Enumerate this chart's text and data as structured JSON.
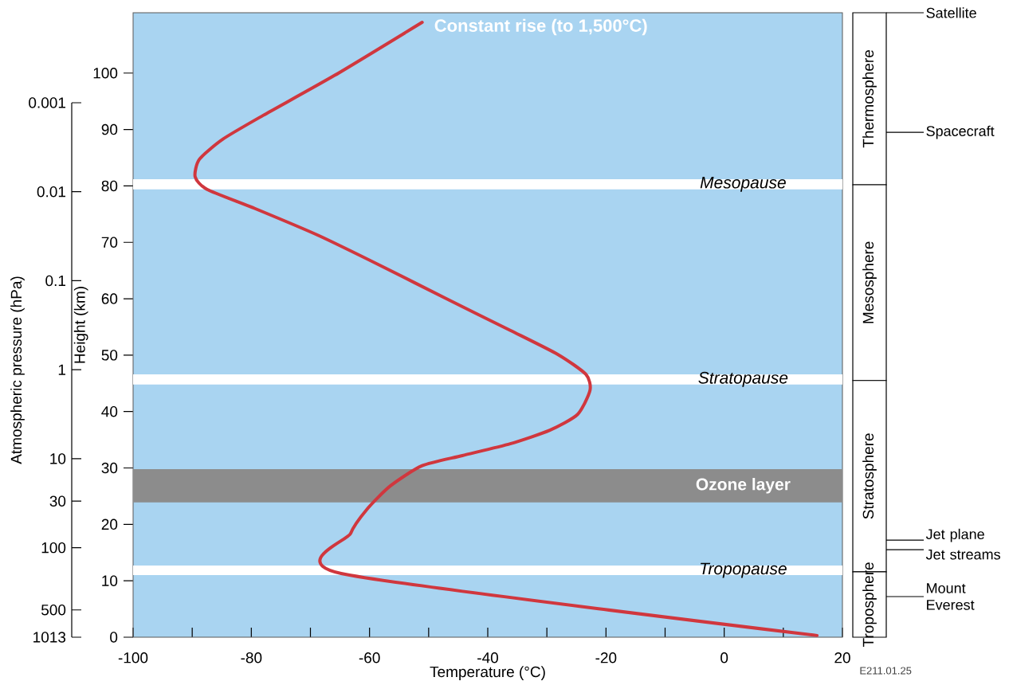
{
  "chart_data": [
    {
      "type": "line",
      "xlabel": "Temperature (°C)",
      "ylabel": "Height (km)",
      "y2label": "Atmospheric pressure (hPa)",
      "series": [
        {
          "color": "#d0373e",
          "x": [
            15.7,
            -64.8,
            -63.2,
            -60.5,
            -56.5,
            -51.1,
            -44.3,
            -36.2,
            -29.5,
            -24.8,
            -22.7,
            -23.4,
            -28.1,
            -36.2,
            -47.0,
            -57.8,
            -68.6,
            -79.4,
            -87.5,
            -89.5,
            -88.8,
            -84.8,
            -78.0,
            -65.9,
            -51.1
          ],
          "values": [
            0.3,
            11.3,
            18.4,
            22.6,
            26.8,
            30.4,
            32.2,
            34.3,
            36.7,
            39.5,
            43.8,
            46.6,
            50.1,
            54.4,
            60.0,
            65.7,
            71.2,
            76.0,
            79.4,
            81.6,
            84.7,
            88.3,
            92.5,
            99.6,
            109.0
          ]
        }
      ],
      "xlim": [
        -100,
        20
      ],
      "ylim": [
        0,
        110.7
      ],
      "xticks": [
        -100,
        {
          "value": -90,
          "label": null
        },
        -80,
        {
          "value": -70,
          "label": null
        },
        -60,
        {
          "value": -50,
          "label": null
        },
        -40,
        {
          "value": -30,
          "label": null
        },
        -20,
        {
          "value": -10,
          "label": null
        },
        0,
        {
          "value": 10,
          "label": null
        },
        20
      ],
      "yticks": [
        0,
        10,
        20,
        30,
        40,
        50,
        60,
        70,
        80,
        90,
        100
      ],
      "log": "y2",
      "y2lim": [
        1013,
        0.001
      ],
      "y2ticks": [
        1013,
        500,
        100,
        30,
        10,
        1,
        0.1,
        0.01,
        0.001
      ],
      "bands": [
        {
          "axis": "y",
          "from": 11.0,
          "to": 12.7,
          "label": "Tropopause",
          "color": "#ffffff"
        },
        {
          "axis": "y",
          "from": 23.9,
          "to": 29.8,
          "label": "Ozone layer",
          "color": "#8c8c8c"
        },
        {
          "axis": "y",
          "from": 44.8,
          "to": 46.6,
          "label": "Stratopause",
          "color": "#ffffff"
        },
        {
          "axis": "y",
          "from": 79.4,
          "to": 81.2,
          "label": "Mesopause",
          "color": "#ffffff"
        }
      ],
      "annotations": [
        {
          "text": "Constant rise (to 1,500°C)",
          "x": -51.1,
          "y": 109.0
        },
        "E211.01.25"
      ]
    },
    {
      "type": "bar",
      "stacked": true,
      "categories": [
        null
      ],
      "ylim": [
        0,
        110.7
      ],
      "tick_labels": false,
      "series": [
        {
          "name": "Troposphere",
          "color": "#ffffff",
          "values": [
            11.6
          ]
        },
        {
          "name": "Stratosphere",
          "color": "#ffffff",
          "values": [
            33.9
          ]
        },
        {
          "name": "Mesosphere",
          "color": "#ffffff",
          "values": [
            34.7
          ]
        },
        {
          "name": "Thermosphere",
          "color": "#ffffff",
          "values": [
            30.5
          ]
        }
      ],
      "ref_lines": [
        {
          "axis": "y",
          "value": 7.2,
          "label": "Mount Everest"
        },
        {
          "axis": "y",
          "value": 15.5,
          "label": "Jet streams"
        },
        {
          "axis": "y",
          "value": 17.2,
          "label": "Jet plane"
        },
        {
          "axis": "y",
          "value": 89.5,
          "label": "Spacecraft"
        },
        {
          "axis": "y",
          "value": 110.7,
          "label": "Satellite"
        }
      ]
    }
  ]
}
